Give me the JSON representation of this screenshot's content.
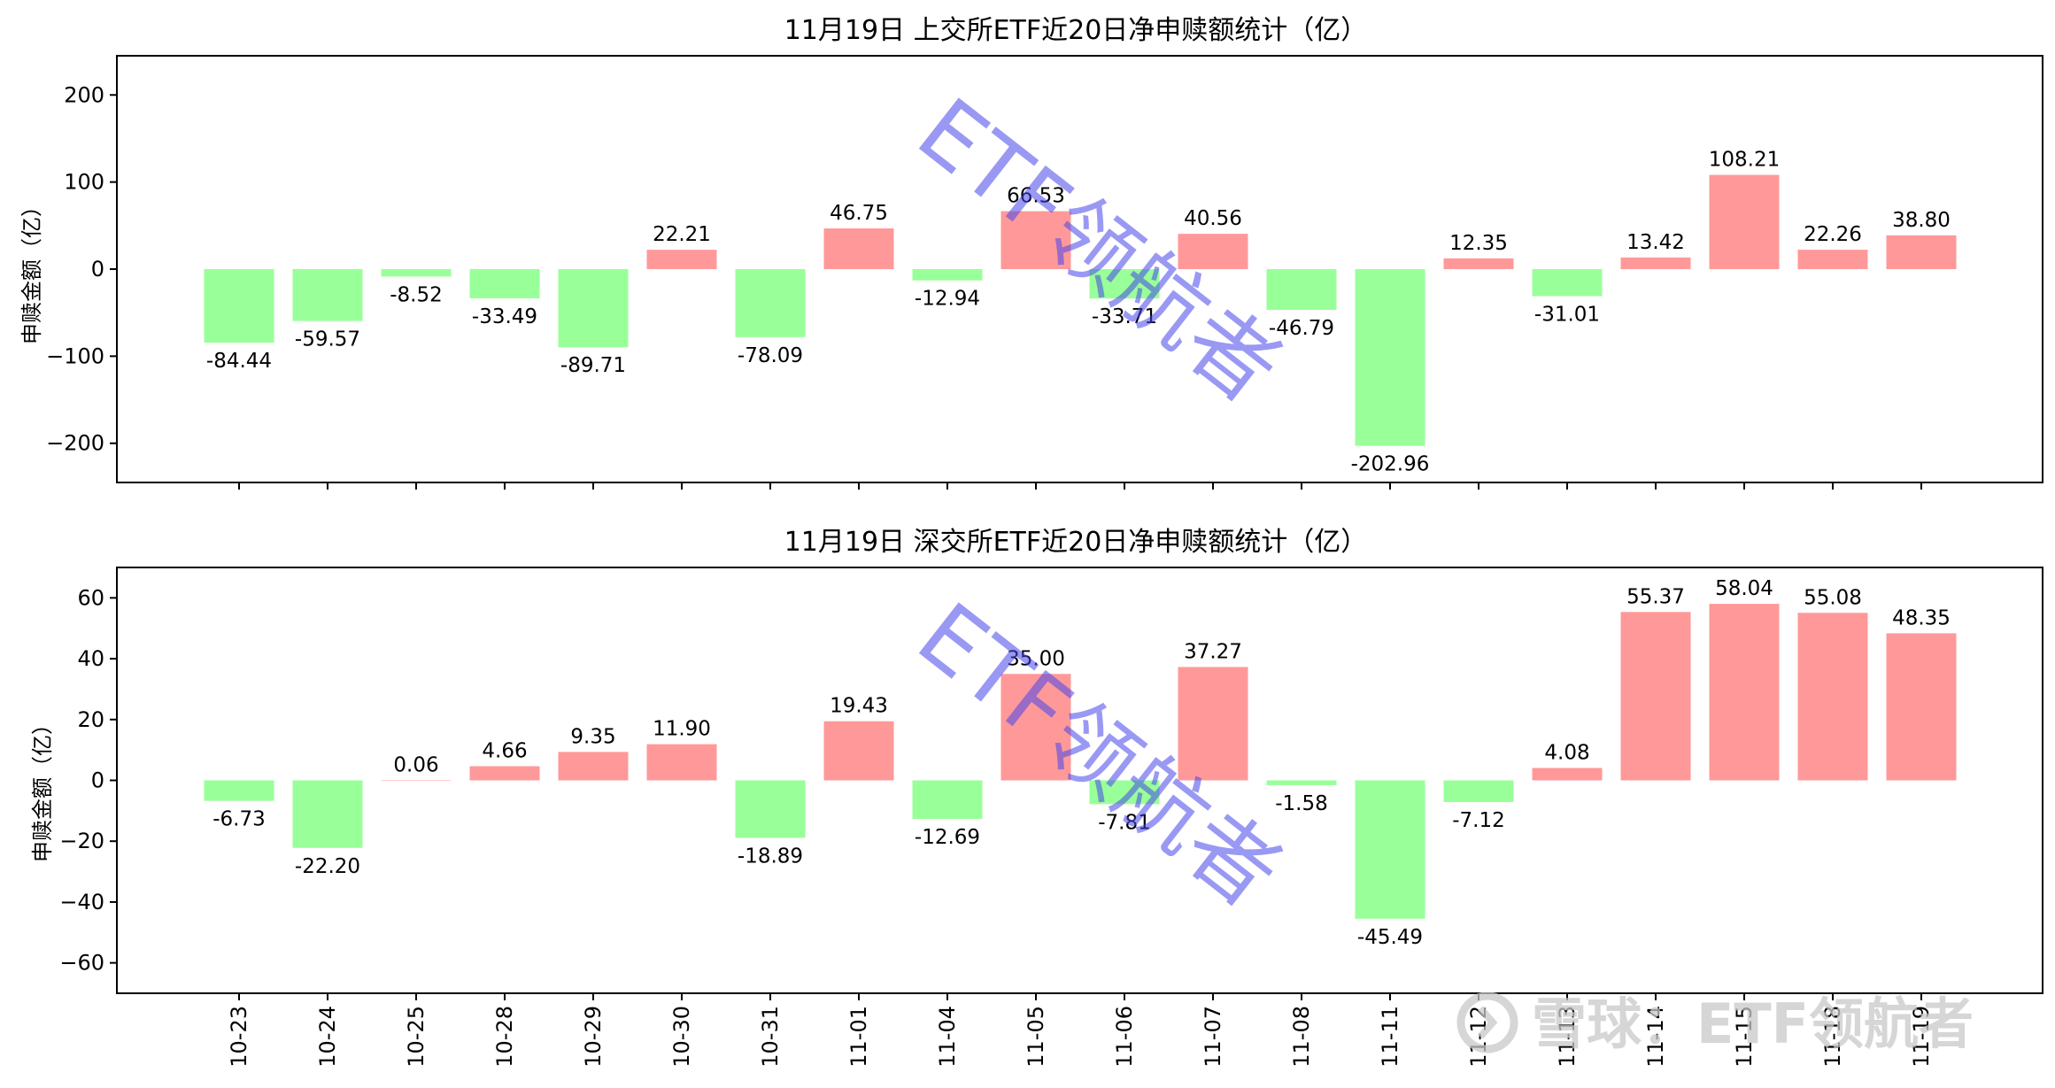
{
  "colors": {
    "positive": "#FF9999",
    "negative": "#99FF99",
    "watermark": "#4646EB",
    "brand": "#C8C8C8"
  },
  "watermark": {
    "text": "ETF领航者"
  },
  "brand_watermark": {
    "icon": "snowball-logo-icon",
    "text": "雪球：ETF领航者"
  },
  "chart_data": [
    {
      "type": "bar",
      "title": "11月19日 上交所ETF近20日净申赎额统计（亿）",
      "ylabel": "申赎金额（亿）",
      "xlabel": "",
      "ylim": [
        -245,
        245
      ],
      "yticks": [
        -200,
        -100,
        0,
        100,
        200
      ],
      "categories": [
        "10-23",
        "10-24",
        "10-25",
        "10-28",
        "10-29",
        "10-30",
        "10-31",
        "11-01",
        "11-04",
        "11-05",
        "11-06",
        "11-07",
        "11-08",
        "11-11",
        "11-12",
        "11-13",
        "11-14",
        "11-15",
        "11-18",
        "11-19"
      ],
      "values": [
        -84.44,
        -59.57,
        -8.52,
        -33.49,
        -89.71,
        22.21,
        -78.09,
        46.75,
        -12.94,
        66.53,
        -33.71,
        40.56,
        -46.79,
        -202.96,
        12.35,
        -31.01,
        13.42,
        108.21,
        22.26,
        38.8
      ],
      "labels": [
        "-84.44",
        "-59.57",
        "-8.52",
        "-33.49",
        "-89.71",
        "22.21",
        "-78.09",
        "46.75",
        "-12.94",
        "66.53",
        "-33.71",
        "40.56",
        "-46.79",
        "-202.96",
        "12.35",
        "-31.01",
        "13.42",
        "108.21",
        "22.26",
        "38.80"
      ],
      "show_x_labels": false
    },
    {
      "type": "bar",
      "title": "11月19日 深交所ETF近20日净申赎额统计（亿）",
      "ylabel": "申赎金额（亿）",
      "xlabel": "",
      "ylim": [
        -70,
        70
      ],
      "yticks": [
        -60,
        -40,
        -20,
        0,
        20,
        40,
        60
      ],
      "categories": [
        "10-23",
        "10-24",
        "10-25",
        "10-28",
        "10-29",
        "10-30",
        "10-31",
        "11-01",
        "11-04",
        "11-05",
        "11-06",
        "11-07",
        "11-08",
        "11-11",
        "11-12",
        "11-13",
        "11-14",
        "11-15",
        "11-18",
        "11-19"
      ],
      "values": [
        -6.73,
        -22.2,
        0.06,
        4.66,
        9.35,
        11.9,
        -18.89,
        19.43,
        -12.69,
        35.0,
        -7.81,
        37.27,
        -1.58,
        -45.49,
        -7.12,
        4.08,
        55.37,
        58.04,
        55.08,
        48.35
      ],
      "labels": [
        "-6.73",
        "-22.20",
        "0.06",
        "4.66",
        "9.35",
        "11.90",
        "-18.89",
        "19.43",
        "-12.69",
        "35.00",
        "-7.81",
        "37.27",
        "-1.58",
        "-45.49",
        "-7.12",
        "4.08",
        "55.37",
        "58.04",
        "55.08",
        "48.35"
      ],
      "show_x_labels": true
    }
  ]
}
